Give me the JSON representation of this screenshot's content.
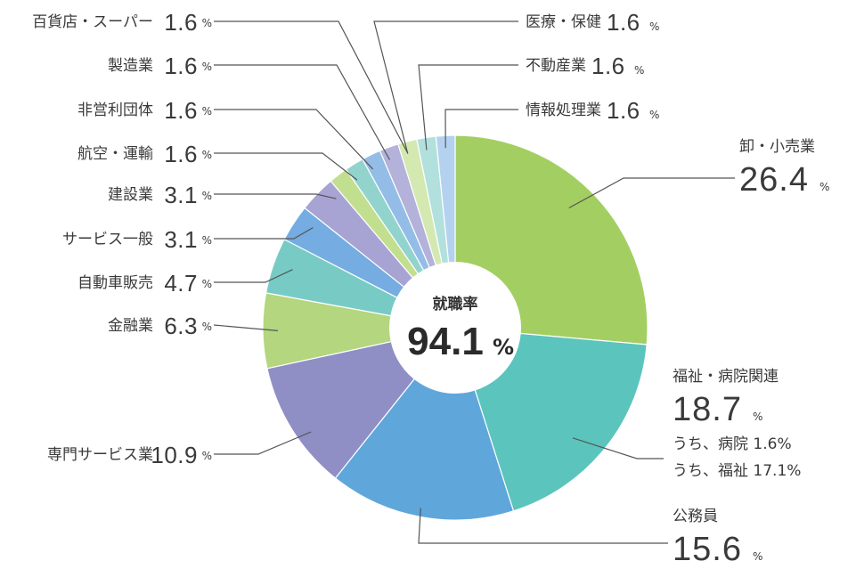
{
  "chart_data": {
    "type": "pie",
    "center": {
      "label": "就職率",
      "value": "94.1",
      "unit": "%"
    },
    "unit": "%",
    "slices": [
      {
        "name": "卸・小売業",
        "value": 26.4,
        "color": "#a3cf62"
      },
      {
        "name": "福祉・病院関連",
        "value": 18.7,
        "color": "#5bc4bd",
        "sub": [
          {
            "text": "うち、病院 1.6%"
          },
          {
            "text": "うち、福祉 17.1%"
          }
        ]
      },
      {
        "name": "公務員",
        "value": 15.6,
        "color": "#5fa6db"
      },
      {
        "name": "専門サービス業",
        "value": 10.9,
        "color": "#8f8fc6"
      },
      {
        "name": "金融業",
        "value": 6.3,
        "color": "#b3d67e"
      },
      {
        "name": "自動車販売",
        "value": 4.7,
        "color": "#78cbc5"
      },
      {
        "name": "サービス一般",
        "value": 3.1,
        "color": "#75ace1"
      },
      {
        "name": "建設業",
        "value": 3.1,
        "color": "#a7a3d3"
      },
      {
        "name": "航空・運輸",
        "value": 1.6,
        "color": "#c2df90"
      },
      {
        "name": "非営利団体",
        "value": 1.6,
        "color": "#92d3ce"
      },
      {
        "name": "製造業",
        "value": 1.6,
        "color": "#93bde6"
      },
      {
        "name": "百貨店・スーパー",
        "value": 1.6,
        "color": "#b4b1da"
      },
      {
        "name": "医療・保健",
        "value": 1.6,
        "color": "#d4e9b2"
      },
      {
        "name": "不動産業",
        "value": 1.6,
        "color": "#b1e0dd"
      },
      {
        "name": "情報処理業",
        "value": 1.6,
        "color": "#b4d2ef"
      }
    ]
  }
}
